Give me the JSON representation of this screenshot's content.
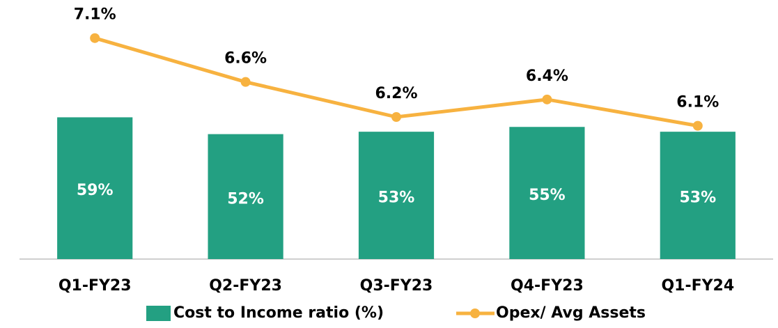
{
  "chart_data": {
    "type": "bar",
    "categories": [
      "Q1-FY23",
      "Q2-FY23",
      "Q3-FY23",
      "Q4-FY23",
      "Q1-FY24"
    ],
    "series": [
      {
        "name": "Cost to Income ratio (%)",
        "type": "bar",
        "color": "#23a082",
        "values": [
          59,
          52,
          53,
          55,
          53
        ],
        "value_labels": [
          "59%",
          "52%",
          "53%",
          "55%",
          "53%"
        ]
      },
      {
        "name": "Opex/ Avg Assets",
        "type": "line",
        "axis": "y2",
        "color": "#f7b240",
        "values": [
          7.1,
          6.6,
          6.2,
          6.4,
          6.1
        ],
        "value_labels": [
          "7.1%",
          "6.6%",
          "6.2%",
          "6.4%",
          "6.1%"
        ]
      }
    ],
    "ylim": [
      0,
      100
    ],
    "y2lim": [
      4.58,
      7.32
    ],
    "legend": "bottom"
  }
}
